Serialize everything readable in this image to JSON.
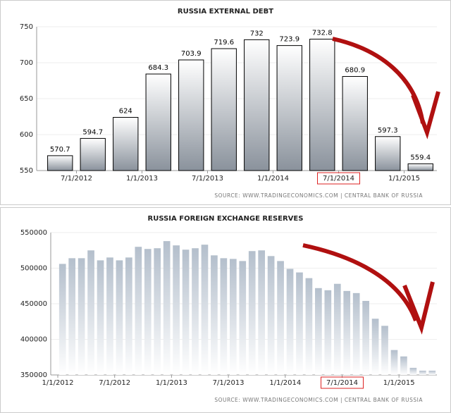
{
  "chart_data": [
    {
      "type": "bar",
      "title": "RUSSIA EXTERNAL DEBT",
      "categories": [
        "7/1/2012",
        null,
        "1/1/2013",
        null,
        "7/1/2013",
        null,
        "1/1/2014",
        null,
        "7/1/2014",
        null,
        "1/1/2015",
        null
      ],
      "values": [
        570.7,
        594.7,
        624,
        684.3,
        703.9,
        719.6,
        732,
        723.9,
        732.8,
        680.9,
        597.3,
        559.4
      ],
      "ylim": [
        550,
        750
      ],
      "yticks": [
        550,
        600,
        650,
        700,
        750
      ],
      "grid": true,
      "data_labels": true,
      "highlight_index": 8,
      "color": "#8a929c",
      "source": "SOURCE: WWW.TRADINGECONOMICS.COM  |  CENTRAL BANK OF RUSSIA"
    },
    {
      "type": "bar",
      "title": "RUSSIA FOREIGN EXCHANGE RESERVES",
      "categories": [
        "1/1/2012",
        null,
        null,
        null,
        null,
        null,
        "7/1/2012",
        null,
        null,
        null,
        null,
        null,
        "1/1/2013",
        null,
        null,
        null,
        null,
        null,
        "7/1/2013",
        null,
        null,
        null,
        null,
        null,
        "1/1/2014",
        null,
        null,
        null,
        null,
        null,
        "7/1/2014",
        null,
        null,
        null,
        null,
        null,
        "1/1/2015",
        null,
        null,
        null
      ],
      "values": [
        506000,
        514000,
        514000,
        525000,
        511000,
        515000,
        511000,
        515000,
        530000,
        527000,
        528000,
        538000,
        532000,
        526000,
        528000,
        533000,
        518000,
        514000,
        513000,
        510000,
        524000,
        525000,
        517000,
        510000,
        499000,
        494000,
        486000,
        472000,
        469000,
        478000,
        468000,
        465000,
        454000,
        429000,
        419000,
        385000,
        376000,
        360000,
        356000,
        356000
      ],
      "ylim": [
        350000,
        550000
      ],
      "yticks": [
        350000,
        400000,
        450000,
        500000,
        550000
      ],
      "grid": true,
      "data_labels": false,
      "highlight_index": 30,
      "color": "#b4bfcc",
      "source": "SOURCE: WWW.TRADINGECONOMICS.COM  |  CENTRAL BANK OF RUSSIA"
    }
  ]
}
